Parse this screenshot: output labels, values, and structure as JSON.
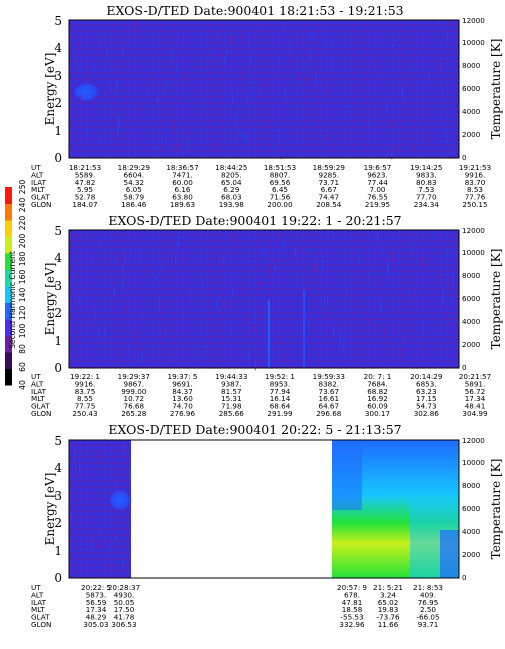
{
  "colors": {
    "background": "#3a2fd6",
    "stripe": "#5a25b8",
    "frame": "#000000",
    "colorbar": [
      "#000000",
      "#3a0a5e",
      "#6b1fa8",
      "#4b2ef0",
      "#1f6bff",
      "#16c6ff",
      "#1dd9a8",
      "#23e23a",
      "#c8f01a",
      "#ffd000",
      "#ff7a00",
      "#ff1a10"
    ]
  },
  "colorbar": {
    "label": "Second Harmonic Current",
    "ticks": [
      "40",
      "60",
      "80",
      "100",
      "120",
      "140",
      "160",
      "180",
      "200",
      "220",
      "240",
      "250"
    ]
  },
  "panels": [
    {
      "title": "EXOS-D/TED   Date:900401   18:21:53 - 19:21:53",
      "ylabel": "Energy [eV]",
      "ylabel_right": "Temperature [K]",
      "yticks": [
        "0",
        "1",
        "2",
        "3",
        "4",
        "5"
      ],
      "yticks_right": [
        "0",
        "2000",
        "4000",
        "6000",
        "8000",
        "10000",
        "12000"
      ],
      "table": [
        {
          "label": "UT",
          "values": [
            "18:21:53",
            "18:29:29",
            "18:36:57",
            "18:44:25",
            "18:51:53",
            "18:59:29",
            "19:6:57",
            "19:14:25",
            "19:21:53"
          ]
        },
        {
          "label": "ALT",
          "values": [
            "5589.",
            "6604.",
            "7471.",
            "8205.",
            "8807.",
            "9285.",
            "9623.",
            "9833.",
            "9916."
          ]
        },
        {
          "label": "ILAT",
          "values": [
            "47.82",
            "54.32",
            "60.00",
            "65.04",
            "69.56",
            "73.71",
            "77.44",
            "80.83",
            "83.70"
          ]
        },
        {
          "label": "MLT",
          "values": [
            "5.95",
            "6.05",
            "6.16",
            "6.29",
            "6.45",
            "6.67",
            "7.00",
            "7.53",
            "8.53"
          ]
        },
        {
          "label": "GLAT",
          "values": [
            "52.78",
            "58.79",
            "63.80",
            "68.03",
            "71.56",
            "74.47",
            "76.55",
            "77.70",
            "77.76"
          ]
        },
        {
          "label": "GLON",
          "values": [
            "184.07",
            "186.46",
            "189.63",
            "193.98",
            "200.00",
            "208.54",
            "219.95",
            "234.34",
            "250.15"
          ]
        }
      ]
    },
    {
      "title": "EXOS-D/TED   Date:900401   19:22: 1 - 20:21:57",
      "ylabel": "Energy [eV]",
      "ylabel_right": "Temperature [K]",
      "yticks": [
        "0",
        "1",
        "2",
        "3",
        "4",
        "5"
      ],
      "yticks_right": [
        "0",
        "2000",
        "4000",
        "6000",
        "8000",
        "10000",
        "12000"
      ],
      "table": [
        {
          "label": "UT",
          "values": [
            "19:22: 1",
            "19:29:37",
            "19:37: 5",
            "19:44:33",
            "19:52: 1",
            "19:59:33",
            "20: 7: 1",
            "20:14:29",
            "20:21:57"
          ]
        },
        {
          "label": "ALT",
          "values": [
            "9916.",
            "9867.",
            "9691.",
            "9387.",
            "8953.",
            "8382.",
            "7684.",
            "6853.",
            "5891."
          ]
        },
        {
          "label": "ILAT",
          "values": [
            "83.75",
            "999.00",
            "84.37",
            "81.57",
            "77.94",
            "73.67",
            "68.82",
            "63.23",
            "56.72"
          ]
        },
        {
          "label": "MLT",
          "values": [
            "8.55",
            "10.72",
            "13.60",
            "15.31",
            "16.14",
            "16.61",
            "16.92",
            "17.15",
            "17.34"
          ]
        },
        {
          "label": "GLAT",
          "values": [
            "77.75",
            "76.68",
            "74.70",
            "71.98",
            "68.64",
            "64.67",
            "60.09",
            "54.73",
            "48.41"
          ]
        },
        {
          "label": "GLON",
          "values": [
            "250.43",
            "265.28",
            "276.96",
            "285.66",
            "291.99",
            "296.68",
            "300.17",
            "302.86",
            "304.99"
          ]
        }
      ]
    },
    {
      "title": "EXOS-D/TED   Date:900401   20:22: 5 - 21:13:57",
      "ylabel": "Energy [eV]",
      "ylabel_right": "Temperature [K]",
      "yticks": [
        "0",
        "1",
        "2",
        "3",
        "4",
        "5"
      ],
      "yticks_right": [
        "0",
        "2000",
        "4000",
        "6000",
        "8000",
        "10000",
        "12000"
      ],
      "table": [
        {
          "label": "UT",
          "values": [
            "20:22: 5",
            "20:28:37",
            "20:57: 9",
            "21: 5:21",
            "21: 8:53"
          ]
        },
        {
          "label": "ALT",
          "values": [
            "5873.",
            "4930.",
            "678.",
            "3.24",
            "409."
          ]
        },
        {
          "label": "ILAT",
          "values": [
            "56.59",
            "50.05",
            "47.81",
            "65.02",
            "76.95"
          ]
        },
        {
          "label": "MLT",
          "values": [
            "17.34",
            "17.50",
            "18.58",
            "19.83",
            "2.50"
          ]
        },
        {
          "label": "GLAT",
          "values": [
            "48.29",
            "41.78",
            "-55.53",
            "-73.76",
            "-66.05"
          ]
        },
        {
          "label": "GLON",
          "values": [
            "305.03",
            "306.53",
            "332.96",
            "11.66",
            "93.71"
          ]
        }
      ]
    }
  ],
  "chart_data": [
    {
      "type": "heatmap",
      "title": "EXOS-D/TED   Date:900401   18:21:53 - 19:21:53",
      "xlabel": "",
      "ylabel": "Energy [eV]",
      "ylabel_right": "Temperature [K]",
      "ylim": [
        0,
        5
      ],
      "ylim_right": [
        0,
        12000
      ],
      "x": [
        "18:21:53",
        "18:29:29",
        "18:36:57",
        "18:44:25",
        "18:51:53",
        "18:59:29",
        "19:6:57",
        "19:14:25",
        "19:21:53"
      ],
      "colorbar_label": "Second Harmonic Current",
      "colorbar_range": [
        40,
        250
      ]
    },
    {
      "type": "heatmap",
      "title": "EXOS-D/TED   Date:900401   19:22: 1 - 20:21:57",
      "xlabel": "",
      "ylabel": "Energy [eV]",
      "ylabel_right": "Temperature [K]",
      "ylim": [
        0,
        5
      ],
      "ylim_right": [
        0,
        12000
      ],
      "x": [
        "19:22: 1",
        "19:29:37",
        "19:37: 5",
        "19:44:33",
        "19:52: 1",
        "19:59:33",
        "20: 7: 1",
        "20:14:29",
        "20:21:57"
      ],
      "colorbar_label": "Second Harmonic Current",
      "colorbar_range": [
        40,
        250
      ]
    },
    {
      "type": "heatmap",
      "title": "EXOS-D/TED   Date:900401   20:22: 5 - 21:13:57",
      "xlabel": "",
      "ylabel": "Energy [eV]",
      "ylabel_right": "Temperature [K]",
      "ylim": [
        0,
        5
      ],
      "ylim_right": [
        0,
        12000
      ],
      "x": [
        "20:22: 5",
        "20:28:37",
        "20:57: 9",
        "21: 5:21",
        "21: 8:53"
      ],
      "colorbar_label": "Second Harmonic Current",
      "colorbar_range": [
        40,
        250
      ]
    }
  ]
}
